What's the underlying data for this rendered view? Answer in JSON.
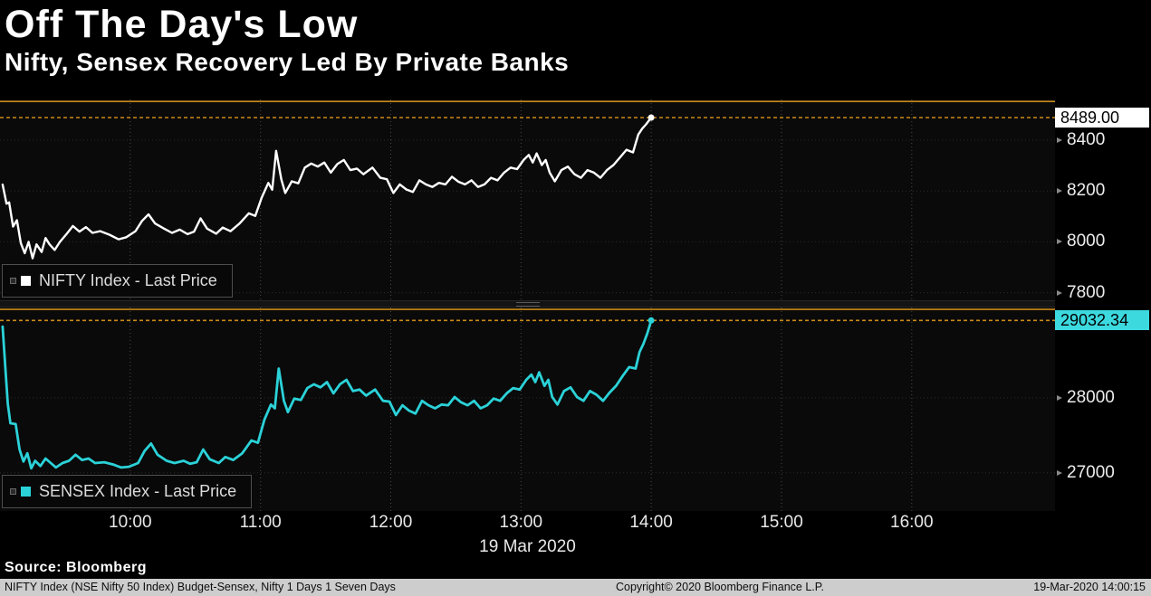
{
  "header": {
    "title": "Off The Day's Low",
    "subtitle": "Nifty, Sensex Recovery Led By Private Banks"
  },
  "footer": {
    "source": "Source:  Bloomberg",
    "bottom_bar": {
      "left": "NIFTY Index (NSE Nifty 50 Index) Budget-Sensex, Nifty 1 Days 1 Seven Days",
      "center": "Copyright© 2020 Bloomberg Finance L.P.",
      "right": "19-Mar-2020 14:00:15"
    }
  },
  "chart_data": {
    "type": "line",
    "title": "Off The Day's Low",
    "subtitle": "Nifty, Sensex Recovery Led By Private Banks",
    "x_axis": {
      "start": 9.0,
      "end": 17.1,
      "date_label": "19 Mar 2020",
      "ticks": [
        {
          "t": 10,
          "label": "10:00"
        },
        {
          "t": 11,
          "label": "11:00"
        },
        {
          "t": 12,
          "label": "12:00"
        },
        {
          "t": 13,
          "label": "13:00"
        },
        {
          "t": 14,
          "label": "14:00"
        },
        {
          "t": 15,
          "label": "15:00"
        },
        {
          "t": 16,
          "label": "16:00"
        }
      ]
    },
    "grid": true,
    "legend_position": "bottom-left-of-each-panel",
    "panels": [
      {
        "name": "NIFTY",
        "legend": "NIFTY Index - Last Price",
        "color": "#ffffff",
        "badge_bg": "#ffffff",
        "badge_text_color": "#000000",
        "ref_line_color": "#c98a18",
        "last_price": 8489.0,
        "last_price_label": "8489.00",
        "y_ticks": [
          8400,
          8200,
          8000,
          7800
        ],
        "y_range": [
          7770,
          8560
        ],
        "ref_lines": [
          {
            "value": 8552,
            "style": "solid"
          },
          {
            "value": 8489,
            "style": "dotted"
          }
        ],
        "points": [
          [
            9.02,
            8225
          ],
          [
            9.05,
            8150
          ],
          [
            9.07,
            8155
          ],
          [
            9.1,
            8060
          ],
          [
            9.13,
            8085
          ],
          [
            9.16,
            7995
          ],
          [
            9.19,
            7955
          ],
          [
            9.22,
            8000
          ],
          [
            9.25,
            7935
          ],
          [
            9.28,
            7990
          ],
          [
            9.32,
            7960
          ],
          [
            9.35,
            8015
          ],
          [
            9.38,
            7990
          ],
          [
            9.42,
            7968
          ],
          [
            9.46,
            8000
          ],
          [
            9.51,
            8030
          ],
          [
            9.56,
            8062
          ],
          [
            9.61,
            8040
          ],
          [
            9.66,
            8058
          ],
          [
            9.71,
            8035
          ],
          [
            9.77,
            8042
          ],
          [
            9.84,
            8028
          ],
          [
            9.91,
            8010
          ],
          [
            9.97,
            8018
          ],
          [
            10.04,
            8042
          ],
          [
            10.09,
            8082
          ],
          [
            10.14,
            8108
          ],
          [
            10.19,
            8072
          ],
          [
            10.26,
            8052
          ],
          [
            10.32,
            8035
          ],
          [
            10.38,
            8048
          ],
          [
            10.44,
            8030
          ],
          [
            10.49,
            8040
          ],
          [
            10.54,
            8092
          ],
          [
            10.59,
            8052
          ],
          [
            10.66,
            8032
          ],
          [
            10.71,
            8056
          ],
          [
            10.77,
            8042
          ],
          [
            10.84,
            8072
          ],
          [
            10.91,
            8112
          ],
          [
            10.96,
            8102
          ],
          [
            11.01,
            8175
          ],
          [
            11.06,
            8232
          ],
          [
            11.09,
            8205
          ],
          [
            11.12,
            8358
          ],
          [
            11.16,
            8245
          ],
          [
            11.19,
            8192
          ],
          [
            11.24,
            8238
          ],
          [
            11.29,
            8230
          ],
          [
            11.34,
            8292
          ],
          [
            11.39,
            8308
          ],
          [
            11.44,
            8296
          ],
          [
            11.49,
            8312
          ],
          [
            11.54,
            8272
          ],
          [
            11.59,
            8306
          ],
          [
            11.64,
            8322
          ],
          [
            11.69,
            8282
          ],
          [
            11.74,
            8288
          ],
          [
            11.79,
            8266
          ],
          [
            11.86,
            8292
          ],
          [
            11.92,
            8252
          ],
          [
            11.97,
            8246
          ],
          [
            12.02,
            8192
          ],
          [
            12.07,
            8226
          ],
          [
            12.12,
            8206
          ],
          [
            12.17,
            8196
          ],
          [
            12.22,
            8242
          ],
          [
            12.27,
            8226
          ],
          [
            12.32,
            8216
          ],
          [
            12.37,
            8232
          ],
          [
            12.42,
            8226
          ],
          [
            12.47,
            8256
          ],
          [
            12.52,
            8236
          ],
          [
            12.57,
            8226
          ],
          [
            12.62,
            8242
          ],
          [
            12.67,
            8216
          ],
          [
            12.72,
            8226
          ],
          [
            12.77,
            8252
          ],
          [
            12.82,
            8242
          ],
          [
            12.87,
            8272
          ],
          [
            12.92,
            8292
          ],
          [
            12.97,
            8286
          ],
          [
            13.02,
            8322
          ],
          [
            13.06,
            8342
          ],
          [
            13.09,
            8312
          ],
          [
            13.12,
            8348
          ],
          [
            13.16,
            8302
          ],
          [
            13.19,
            8322
          ],
          [
            13.22,
            8272
          ],
          [
            13.26,
            8238
          ],
          [
            13.31,
            8282
          ],
          [
            13.36,
            8296
          ],
          [
            13.41,
            8266
          ],
          [
            13.46,
            8252
          ],
          [
            13.51,
            8282
          ],
          [
            13.56,
            8272
          ],
          [
            13.61,
            8252
          ],
          [
            13.66,
            8282
          ],
          [
            13.71,
            8302
          ],
          [
            13.76,
            8332
          ],
          [
            13.81,
            8362
          ],
          [
            13.86,
            8352
          ],
          [
            13.9,
            8422
          ],
          [
            13.93,
            8445
          ],
          [
            13.96,
            8462
          ],
          [
            14.0,
            8489
          ]
        ]
      },
      {
        "name": "SENSEX",
        "legend": "SENSEX Index - Last Price",
        "color": "#2bd2d8",
        "badge_bg": "#3cd9df",
        "badge_text_color": "#000000",
        "ref_line_color": "#c98a18",
        "last_price": 29032.34,
        "last_price_label": "29032.34",
        "y_ticks": [
          28000,
          27000
        ],
        "y_range": [
          26490,
          29205
        ],
        "ref_lines": [
          {
            "value": 29180,
            "style": "solid"
          },
          {
            "value": 29032.34,
            "style": "dotted"
          }
        ],
        "points": [
          [
            9.02,
            28950
          ],
          [
            9.04,
            28420
          ],
          [
            9.06,
            27920
          ],
          [
            9.08,
            27660
          ],
          [
            9.12,
            27650
          ],
          [
            9.15,
            27310
          ],
          [
            9.18,
            27150
          ],
          [
            9.21,
            27260
          ],
          [
            9.24,
            27060
          ],
          [
            9.27,
            27160
          ],
          [
            9.31,
            27090
          ],
          [
            9.35,
            27190
          ],
          [
            9.39,
            27130
          ],
          [
            9.43,
            27070
          ],
          [
            9.48,
            27130
          ],
          [
            9.53,
            27160
          ],
          [
            9.58,
            27240
          ],
          [
            9.63,
            27170
          ],
          [
            9.68,
            27190
          ],
          [
            9.73,
            27130
          ],
          [
            9.8,
            27140
          ],
          [
            9.87,
            27110
          ],
          [
            9.93,
            27070
          ],
          [
            9.99,
            27080
          ],
          [
            10.06,
            27130
          ],
          [
            10.11,
            27290
          ],
          [
            10.16,
            27390
          ],
          [
            10.21,
            27240
          ],
          [
            10.28,
            27160
          ],
          [
            10.34,
            27130
          ],
          [
            10.41,
            27160
          ],
          [
            10.46,
            27120
          ],
          [
            10.51,
            27140
          ],
          [
            10.56,
            27310
          ],
          [
            10.61,
            27180
          ],
          [
            10.68,
            27130
          ],
          [
            10.73,
            27210
          ],
          [
            10.79,
            27170
          ],
          [
            10.86,
            27260
          ],
          [
            10.93,
            27430
          ],
          [
            10.98,
            27400
          ],
          [
            11.03,
            27710
          ],
          [
            11.08,
            27910
          ],
          [
            11.11,
            27860
          ],
          [
            11.14,
            28390
          ],
          [
            11.18,
            27960
          ],
          [
            11.21,
            27810
          ],
          [
            11.26,
            27990
          ],
          [
            11.31,
            27970
          ],
          [
            11.36,
            28130
          ],
          [
            11.41,
            28180
          ],
          [
            11.46,
            28140
          ],
          [
            11.51,
            28210
          ],
          [
            11.56,
            28060
          ],
          [
            11.61,
            28180
          ],
          [
            11.66,
            28240
          ],
          [
            11.71,
            28090
          ],
          [
            11.76,
            28110
          ],
          [
            11.81,
            28030
          ],
          [
            11.88,
            28110
          ],
          [
            11.94,
            27960
          ],
          [
            11.99,
            27950
          ],
          [
            12.04,
            27770
          ],
          [
            12.09,
            27900
          ],
          [
            12.14,
            27830
          ],
          [
            12.19,
            27790
          ],
          [
            12.24,
            27960
          ],
          [
            12.29,
            27900
          ],
          [
            12.34,
            27860
          ],
          [
            12.39,
            27910
          ],
          [
            12.44,
            27900
          ],
          [
            12.49,
            28010
          ],
          [
            12.54,
            27940
          ],
          [
            12.59,
            27900
          ],
          [
            12.64,
            27960
          ],
          [
            12.69,
            27860
          ],
          [
            12.74,
            27900
          ],
          [
            12.79,
            27990
          ],
          [
            12.84,
            27960
          ],
          [
            12.89,
            28060
          ],
          [
            12.94,
            28130
          ],
          [
            12.99,
            28110
          ],
          [
            13.04,
            28240
          ],
          [
            13.08,
            28310
          ],
          [
            13.11,
            28210
          ],
          [
            13.14,
            28340
          ],
          [
            13.18,
            28160
          ],
          [
            13.21,
            28240
          ],
          [
            13.24,
            28010
          ],
          [
            13.28,
            27910
          ],
          [
            13.33,
            28090
          ],
          [
            13.38,
            28140
          ],
          [
            13.43,
            28010
          ],
          [
            13.48,
            27960
          ],
          [
            13.53,
            28090
          ],
          [
            13.58,
            28040
          ],
          [
            13.63,
            27960
          ],
          [
            13.68,
            28070
          ],
          [
            13.73,
            28160
          ],
          [
            13.78,
            28290
          ],
          [
            13.83,
            28410
          ],
          [
            13.88,
            28390
          ],
          [
            13.91,
            28610
          ],
          [
            13.94,
            28720
          ],
          [
            13.97,
            28860
          ],
          [
            14.0,
            29032.34
          ]
        ]
      }
    ]
  }
}
